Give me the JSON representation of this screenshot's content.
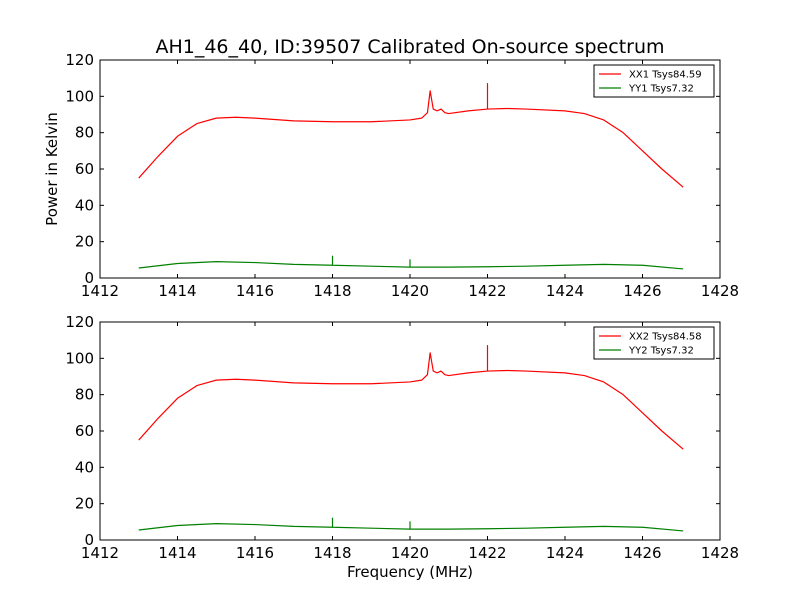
{
  "figure": {
    "title": "AH1_46_40, ID:39507 Calibrated On-source spectrum"
  },
  "colors": {
    "xx": "#ff0000",
    "yy": "#008000"
  },
  "chart_data": [
    {
      "type": "line",
      "title": "AH1_46_40, ID:39507 Calibrated On-source spectrum",
      "xlabel": "",
      "ylabel": "Power in Kelvin",
      "xlim": [
        1412,
        1428
      ],
      "ylim": [
        0,
        120
      ],
      "x_ticks": [
        "1412",
        "1414",
        "1416",
        "1418",
        "1420",
        "1422",
        "1424",
        "1426",
        "1428"
      ],
      "y_ticks": [
        "0",
        "20",
        "40",
        "60",
        "80",
        "100",
        "120"
      ],
      "grid": false,
      "legend": "top-right",
      "series": [
        {
          "name": "XX1 Tsys84.59",
          "color": "#ff0000",
          "x": [
            1413.0,
            1413.5,
            1414.0,
            1414.5,
            1415.0,
            1415.5,
            1416.0,
            1417.0,
            1418.0,
            1419.0,
            1420.0,
            1420.3,
            1420.45,
            1420.52,
            1420.6,
            1420.7,
            1420.8,
            1420.9,
            1421.0,
            1421.5,
            1422.0,
            1422.0,
            1422.0,
            1422.5,
            1423.0,
            1424.0,
            1424.5,
            1425.0,
            1425.5,
            1426.0,
            1426.5,
            1427.05
          ],
          "values": [
            55,
            67,
            78,
            85,
            88,
            88.5,
            88,
            86.5,
            86,
            86,
            87,
            88,
            91,
            103,
            93,
            92,
            93,
            91,
            90.5,
            92,
            93,
            107,
            93,
            93.3,
            93,
            92,
            90.5,
            87,
            80,
            70,
            60,
            50
          ]
        },
        {
          "name": "YY1 Tsys7.32",
          "color": "#008000",
          "x": [
            1413.0,
            1414.0,
            1415.0,
            1416.0,
            1417.0,
            1418.0,
            1418.0,
            1418.0,
            1419.0,
            1420.0,
            1420.0,
            1420.0,
            1421.0,
            1422.0,
            1423.0,
            1424.0,
            1425.0,
            1426.0,
            1427.05
          ],
          "values": [
            5.5,
            8,
            9,
            8.5,
            7.5,
            7,
            12,
            7,
            6.5,
            6,
            10,
            6,
            6,
            6.2,
            6.5,
            7,
            7.5,
            7,
            5
          ]
        }
      ]
    },
    {
      "type": "line",
      "title": "",
      "xlabel": "Frequency (MHz)",
      "ylabel": "",
      "xlim": [
        1412,
        1428
      ],
      "ylim": [
        0,
        120
      ],
      "x_ticks": [
        "1412",
        "1414",
        "1416",
        "1418",
        "1420",
        "1422",
        "1424",
        "1426",
        "1428"
      ],
      "y_ticks": [
        "0",
        "20",
        "40",
        "60",
        "80",
        "100",
        "120"
      ],
      "grid": false,
      "legend": "top-right",
      "series": [
        {
          "name": "XX2 Tsys84.58",
          "color": "#ff0000",
          "x": [
            1413.0,
            1413.5,
            1414.0,
            1414.5,
            1415.0,
            1415.5,
            1416.0,
            1417.0,
            1418.0,
            1419.0,
            1420.0,
            1420.3,
            1420.45,
            1420.52,
            1420.6,
            1420.7,
            1420.8,
            1420.9,
            1421.0,
            1421.5,
            1422.0,
            1422.0,
            1422.0,
            1422.5,
            1423.0,
            1424.0,
            1424.5,
            1425.0,
            1425.5,
            1426.0,
            1426.5,
            1427.05
          ],
          "values": [
            55,
            67,
            78,
            85,
            88,
            88.5,
            88,
            86.5,
            86,
            86,
            87,
            88,
            91,
            103,
            93,
            92,
            93,
            91,
            90.5,
            92,
            93,
            107,
            93,
            93.3,
            93,
            92,
            90.5,
            87,
            80,
            70,
            60,
            50
          ]
        },
        {
          "name": "YY2 Tsys7.32",
          "color": "#008000",
          "x": [
            1413.0,
            1414.0,
            1415.0,
            1416.0,
            1417.0,
            1418.0,
            1418.0,
            1418.0,
            1419.0,
            1420.0,
            1420.0,
            1420.0,
            1421.0,
            1422.0,
            1423.0,
            1424.0,
            1425.0,
            1426.0,
            1427.05
          ],
          "values": [
            5.5,
            8,
            9,
            8.5,
            7.5,
            7,
            12,
            7,
            6.5,
            6,
            10,
            6,
            6,
            6.2,
            6.5,
            7,
            7.5,
            7,
            5
          ]
        }
      ]
    }
  ]
}
